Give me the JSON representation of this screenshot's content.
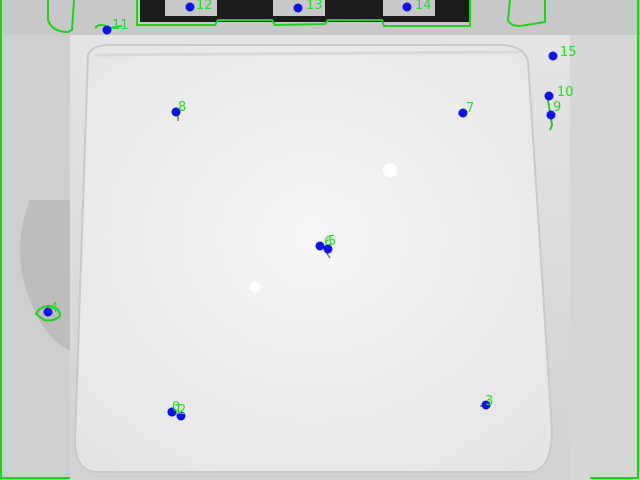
{
  "image": {
    "kind": "grayscale camera view of a bed mattress with tracked feature points and green contour outlines"
  },
  "colors": {
    "point": "#0a14e6",
    "label": "#22dd22",
    "contour": "#1fd21f"
  },
  "keypoints": [
    {
      "id": "11",
      "label": "11"
    },
    {
      "id": "12",
      "label": "12"
    },
    {
      "id": "13",
      "label": "13"
    },
    {
      "id": "14",
      "label": "14"
    },
    {
      "id": "15",
      "label": "15"
    },
    {
      "id": "10",
      "label": "10"
    },
    {
      "id": "9",
      "label": "9"
    },
    {
      "id": "8",
      "label": "8"
    },
    {
      "id": "7",
      "label": "7"
    },
    {
      "id": "6",
      "label": "6"
    },
    {
      "id": "5",
      "label": "5"
    },
    {
      "id": "4",
      "label": "4"
    },
    {
      "id": "3",
      "label": "3"
    },
    {
      "id": "2",
      "label": "2"
    },
    {
      "id": "1",
      "label": "1"
    },
    {
      "id": "0",
      "label": "0"
    }
  ]
}
